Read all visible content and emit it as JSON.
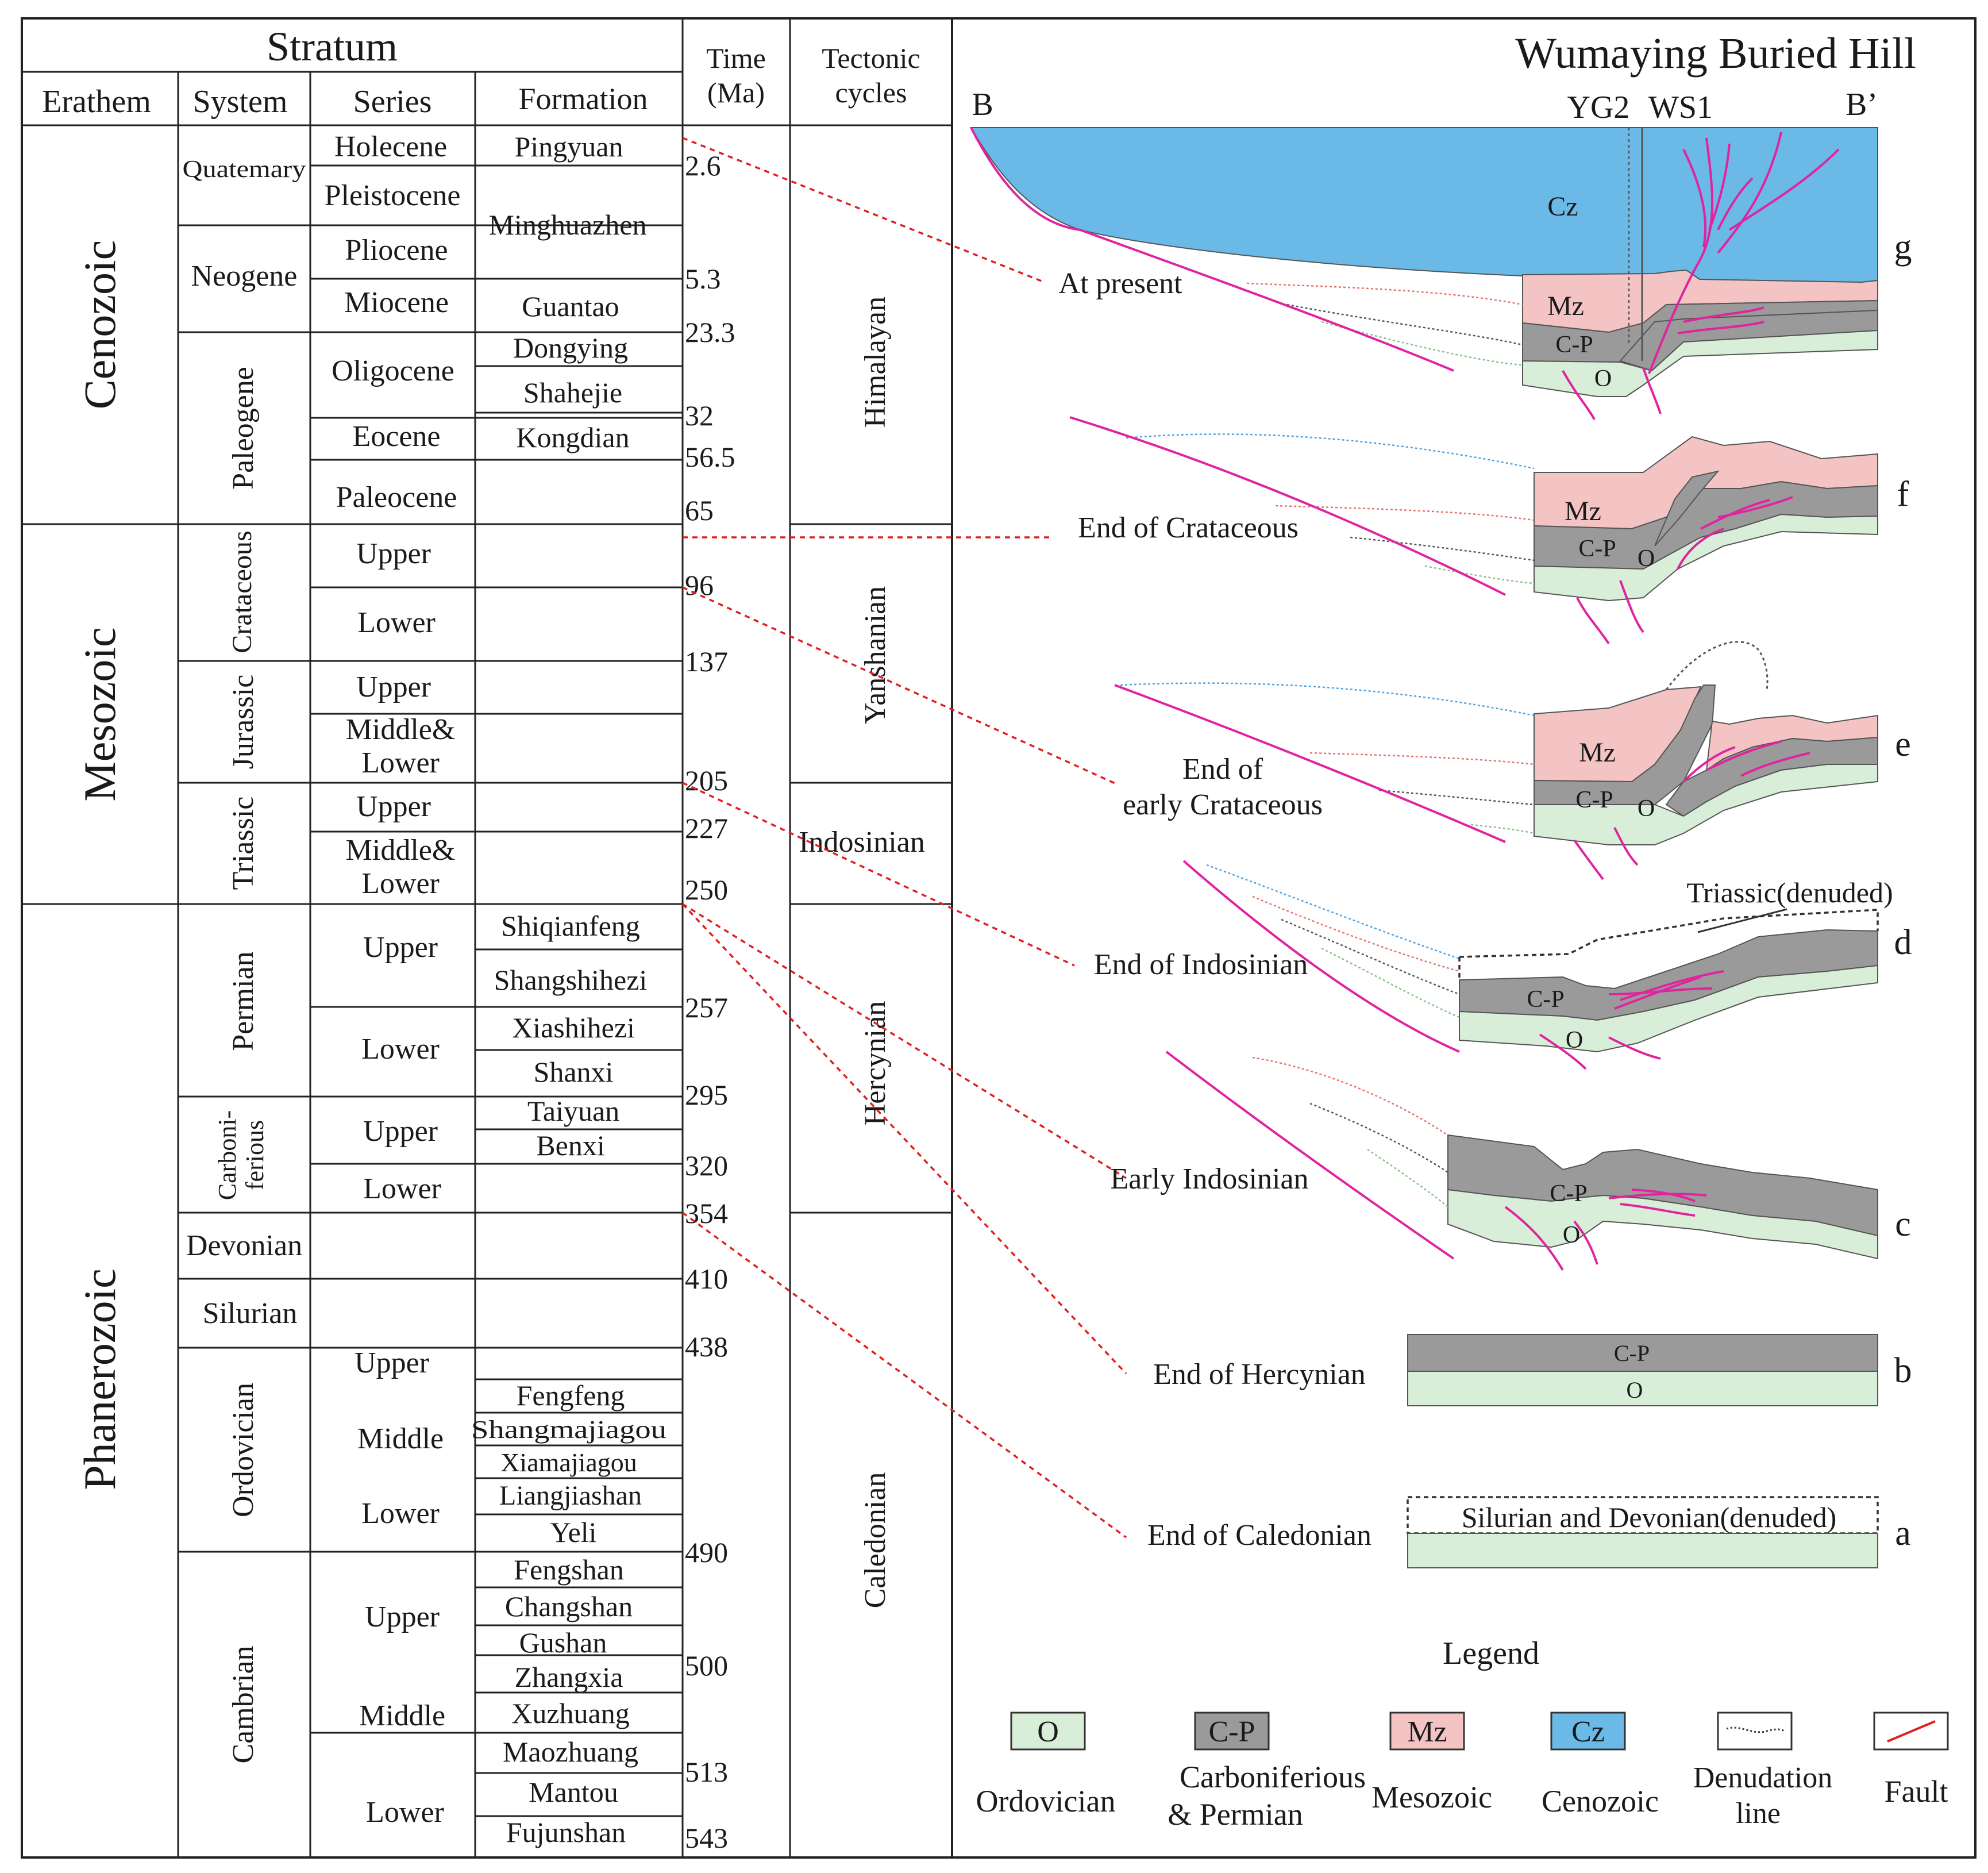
{
  "header": {
    "stratum": "Stratum",
    "erathem": "Erathem",
    "system": "System",
    "series": "Series",
    "formation": "Formation",
    "time_l1": "Time",
    "time_l2": "(Ma)",
    "tectonic_l1": "Tectonic",
    "tectonic_l2": "cycles"
  },
  "title": "Wumaying Buried Hill",
  "section": {
    "left": "B",
    "right": "B’",
    "well1": "YG2",
    "well2": "WS1"
  },
  "erathems": [
    "Cenozoic",
    "Mesozoic",
    "Phanerozoic"
  ],
  "systems": {
    "quaternary": "Quatemary",
    "neogene": "Neogene",
    "paleogene": "Paleogene",
    "cretaceous": "Crataceous",
    "jurassic": "Jurassic",
    "triassic": "Triassic",
    "permian": "Permian",
    "carboniferous_l1": "Carboni-",
    "carboniferous_l2": "ferious",
    "devonian": "Devonian",
    "silurian": "Silurian",
    "ordovician": "Ordovician",
    "cambrian": "Cambrian"
  },
  "series": {
    "holocene": "Holecene",
    "pleistocene": "Pleistocene",
    "pliocene": "Pliocene",
    "miocene": "Miocene",
    "oligocene": "Oligocene",
    "eocene": "Eocene",
    "paleocene": "Paleocene",
    "upper": "Upper",
    "middle": "Middle",
    "lower": "Lower",
    "middle_lower_l1": "Middle&",
    "middle_lower_l2": "Lower"
  },
  "formations": {
    "pingyuan": "Pingyuan",
    "minghuazhen": "Minghuazhen",
    "guantao": "Guantao",
    "dongying": "Dongying",
    "shahejie": "Shahejie",
    "kongdian": "Kongdian",
    "shiqianfeng": "Shiqianfeng",
    "shangshihezi": "Shangshihezi",
    "xiashihezi": "Xiashihezi",
    "shanxi": "Shanxi",
    "taiyuan": "Taiyuan",
    "benxi": "Benxi",
    "fengfeng": "Fengfeng",
    "shangmajiagou": "Shangmajiagou",
    "xiamajiagou": "Xiamajiagou",
    "liangjiashan": "Liangjiashan",
    "yeli": "Yeli",
    "fengshan": "Fengshan",
    "changshan": "Changshan",
    "gushan": "Gushan",
    "zhangxia": "Zhangxia",
    "xuzhuang": "Xuzhuang",
    "maozhuang": "Maozhuang",
    "mantou": "Mantou",
    "fujunshan": "Fujunshan"
  },
  "times": {
    "t1": "2.6",
    "t2": "5.3",
    "t3": "23.3",
    "t4": "32",
    "t5": "56.5",
    "t6": "65",
    "t7": "96",
    "t8": "137",
    "t9": "205",
    "t10": "227",
    "t11": "250",
    "t12": "257",
    "t13": "295",
    "t14": "320",
    "t15": "354",
    "t16": "410",
    "t17": "438",
    "t18": "490",
    "t19": "500",
    "t20": "513",
    "t21": "543"
  },
  "cycles": {
    "himalayan": "Himalayan",
    "yanshanian": "Yanshanian",
    "indosinian": "Indosinian",
    "hercynian": "Hercynian",
    "caledonian": "Caledonian"
  },
  "stages": {
    "g": "At present",
    "f": "End of  Crataceous",
    "e_l1": "End of",
    "e_l2": "early Crataceous",
    "d": "End of Indosinian",
    "c": "Early Indosinian",
    "b": "End of Hercynian",
    "a": "End of Caledonian"
  },
  "panel_letters": {
    "g": "g",
    "f": "f",
    "e": "e",
    "d": "d",
    "c": "c",
    "b": "b",
    "a": "a"
  },
  "unit_labels": {
    "cz": "Cz",
    "mz": "Mz",
    "cp": "C-P",
    "o": "O"
  },
  "notes": {
    "triassic_denuded": "Triassic(denuded)",
    "silurian_devonian_denuded": "Silurian and Devonian(denuded)"
  },
  "legend": {
    "title": "Legend",
    "ordovician": "Ordovician",
    "cp_l1": "Carboniferious",
    "cp_l2": "& Permian",
    "mesozoic": "Mesozoic",
    "cenozoic": "Cenozoic",
    "denudation_l1": "Denudation",
    "denudation_l2": "line",
    "fault": "Fault"
  },
  "colors": {
    "ordovician": "#d9eed8",
    "carbo_permian": "#9a9a9a",
    "mesozoic": "#f4c4c4",
    "cenozoic": "#6bb9e6",
    "fault": "#e0239f",
    "correlation": "#e02020"
  }
}
